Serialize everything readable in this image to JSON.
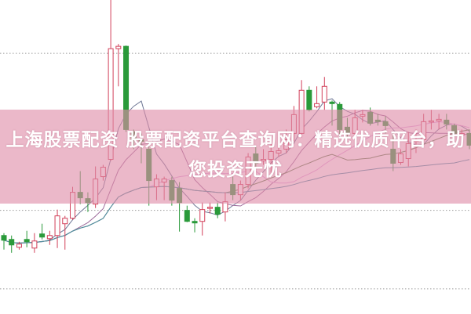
{
  "title": "上海股票配资 股票配资平台查询网：精选优质平台，助您投资无忧",
  "colors": {
    "up": "#d2405a",
    "down": "#2a9a3a",
    "banner": "#de8ca8",
    "grid": "#9a9a9a"
  },
  "chart_data": {
    "type": "candlestick",
    "grid": true,
    "ylim": [
      0,
      40
    ],
    "gridlines": [
      33.2,
      13.2,
      3.2
    ],
    "candles": [
      [
        10.0,
        10.3,
        8.2,
        9.4
      ],
      [
        9.5,
        10.0,
        7.8,
        8.8
      ],
      [
        8.5,
        9.2,
        8.2,
        8.9
      ],
      [
        9.5,
        10.6,
        8.5,
        9.2
      ],
      [
        8.4,
        10.3,
        7.8,
        9.3
      ],
      [
        10.2,
        11.5,
        9.5,
        9.8
      ],
      [
        9.6,
        10.6,
        8.8,
        10.0
      ],
      [
        10.0,
        13.3,
        8.4,
        12.5
      ],
      [
        11.5,
        12.5,
        8.2,
        12.2
      ],
      [
        12.2,
        16.2,
        12.0,
        15.5
      ],
      [
        15.5,
        18.2,
        14.0,
        14.8
      ],
      [
        14.7,
        15.5,
        13.0,
        14.2
      ],
      [
        14.0,
        18.8,
        13.5,
        17.2
      ],
      [
        17.5,
        19.0,
        17.0,
        18.7
      ],
      [
        19.7,
        40.0,
        19.5,
        33.8
      ],
      [
        33.8,
        34.4,
        29.0,
        34.1
      ],
      [
        34.1,
        34.2,
        23.2,
        23.5
      ],
      [
        23.2,
        23.5,
        21.0,
        22.2
      ],
      [
        22.2,
        23.0,
        19.2,
        22.0
      ],
      [
        21.0,
        22.0,
        13.8,
        17.0
      ],
      [
        16.2,
        17.8,
        14.5,
        17.2
      ],
      [
        16.8,
        17.5,
        14.5,
        17.2
      ],
      [
        17.0,
        17.5,
        13.8,
        14.5
      ],
      [
        16.0,
        16.8,
        10.5,
        14.2
      ],
      [
        13.2,
        13.8,
        11.7,
        11.8
      ],
      [
        11.8,
        12.2,
        10.4,
        11.6
      ],
      [
        11.8,
        14.2,
        10.0,
        13.3
      ],
      [
        13.5,
        14.2,
        12.8,
        13.6
      ],
      [
        13.6,
        14.2,
        12.2,
        12.7
      ],
      [
        13.0,
        15.5,
        11.8,
        14.3
      ],
      [
        16.5,
        17.5,
        14.5,
        15.2
      ],
      [
        15.2,
        17.0,
        14.5,
        16.5
      ],
      [
        16.5,
        20.5,
        16.0,
        20.0
      ],
      [
        20.4,
        21.4,
        18.5,
        19.2
      ],
      [
        19.5,
        21.0,
        19.0,
        19.7
      ],
      [
        19.7,
        21.8,
        18.0,
        20.7
      ],
      [
        20.5,
        21.5,
        20.0,
        20.8
      ],
      [
        21.0,
        23.5,
        20.5,
        22.2
      ],
      [
        23.0,
        26.5,
        22.0,
        25.4
      ],
      [
        23.0,
        29.8,
        22.5,
        28.5
      ],
      [
        28.5,
        29.0,
        25.8,
        26.0
      ],
      [
        26.4,
        29.0,
        26.2,
        26.8
      ],
      [
        27.0,
        30.2,
        26.0,
        29.0
      ],
      [
        27.0,
        27.2,
        24.0,
        26.8
      ],
      [
        26.7,
        27.0,
        22.5,
        23.5
      ],
      [
        23.8,
        25.0,
        22.5,
        23.0
      ],
      [
        23.0,
        26.0,
        22.2,
        25.0
      ],
      [
        25.2,
        26.0,
        24.4,
        25.4
      ],
      [
        25.7,
        26.3,
        24.0,
        24.3
      ],
      [
        24.7,
        25.5,
        24.0,
        24.5
      ],
      [
        24.5,
        25.2,
        23.0,
        24.0
      ],
      [
        21.0,
        23.0,
        18.2,
        19.2
      ],
      [
        19.3,
        21.0,
        19.0,
        20.4
      ],
      [
        19.8,
        23.2,
        18.8,
        21.7
      ],
      [
        22.0,
        23.5,
        20.5,
        22.2
      ],
      [
        22.2,
        25.5,
        21.8,
        24.5
      ],
      [
        24.5,
        26.0,
        23.5,
        24.6
      ],
      [
        24.6,
        25.5,
        23.5,
        24.8
      ],
      [
        24.7,
        25.5,
        23.5,
        24.2
      ],
      [
        24.0,
        24.2,
        22.5,
        23.0
      ],
      [
        22.8,
        23.5,
        22.3,
        23.0
      ],
      [
        23.0,
        23.5,
        21.0,
        21.5
      ]
    ],
    "moving_averages": [
      {
        "period": 5,
        "color": "#6f7896"
      },
      {
        "period": 10,
        "color": "#9c6a9a"
      },
      {
        "period": 20,
        "color": "#e3a6dc"
      },
      {
        "period": 30,
        "color": "#5f7f4e"
      },
      {
        "period": 60,
        "color": "#4a8ea4"
      }
    ]
  }
}
